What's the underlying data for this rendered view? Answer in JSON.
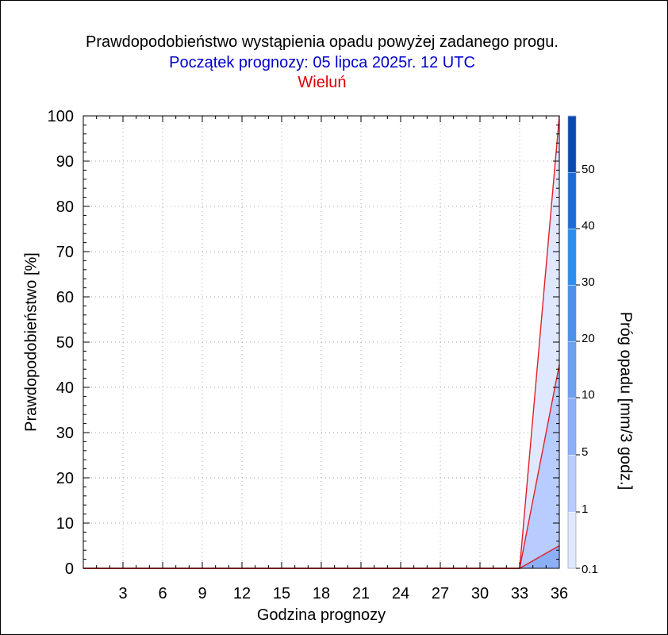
{
  "header": {
    "title": "Prawdopodobieństwo wystąpienia opadu powyżej zadanego progu.",
    "subtitle": "Początek prognozy: 05 lipca 2025r. 12 UTC",
    "station": "Wieluń"
  },
  "colors": {
    "title": "#000000",
    "subtitle": "#0000cc",
    "station": "#dd0000",
    "curve_line": "#e0202a",
    "grid": "#a8a8a8",
    "threshold_0_1": "#e0e8ff",
    "threshold_1": "#b8ccff",
    "threshold_5": "#8cb0f8",
    "threshold_10": "#6ca0f0",
    "threshold_20": "#4a90ec",
    "threshold_30": "#2c8ef0",
    "threshold_40": "#1c6cd8",
    "threshold_50": "#0a4ab0"
  },
  "chart_data": {
    "type": "area",
    "title": "Prawdopodobieństwo wystąpienia opadu powyżej zadanego progu.",
    "xlabel": "Godzina prognozy",
    "ylabel": "Prawdopodobieństwo [%]",
    "colorbar_label": "Próg opadu [mm/3 godz.]",
    "xlim": [
      0,
      36
    ],
    "ylim": [
      0,
      100
    ],
    "x_ticks": [
      3,
      6,
      9,
      12,
      15,
      18,
      21,
      24,
      27,
      30,
      33,
      36
    ],
    "y_ticks": [
      0,
      10,
      20,
      30,
      40,
      50,
      60,
      70,
      80,
      90,
      100
    ],
    "grid": true,
    "x": [
      0,
      3,
      6,
      9,
      12,
      15,
      18,
      21,
      24,
      27,
      30,
      33,
      36
    ],
    "series": [
      {
        "threshold": 0.1,
        "values": [
          0,
          0,
          0,
          0,
          0,
          0,
          0,
          0,
          0,
          0,
          0,
          0,
          100
        ]
      },
      {
        "threshold": 1,
        "values": [
          0,
          0,
          0,
          0,
          0,
          0,
          0,
          0,
          0,
          0,
          0,
          0,
          45
        ]
      },
      {
        "threshold": 5,
        "values": [
          0,
          0,
          0,
          0,
          0,
          0,
          0,
          0,
          0,
          0,
          0,
          0,
          5
        ]
      }
    ],
    "colorbar_ticks": [
      "0.1",
      "1",
      "5",
      "10",
      "20",
      "30",
      "40",
      "50"
    ]
  }
}
